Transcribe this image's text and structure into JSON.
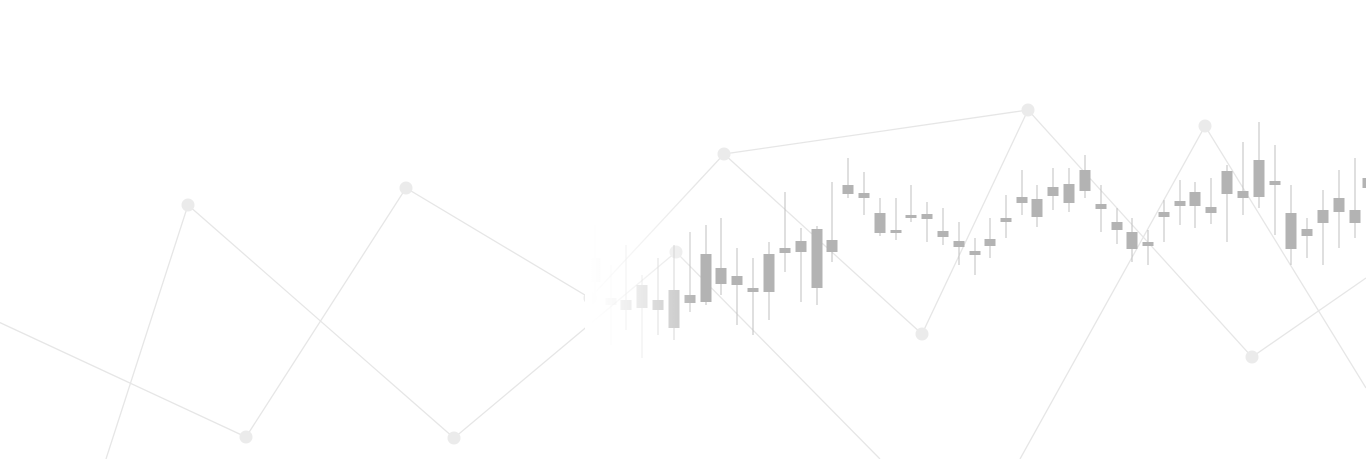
{
  "colors": {
    "background": "#ffffff",
    "network_line": "#e6e6e6",
    "network_node": "#ebebeb",
    "candle": "#b3b3b3",
    "wick": "#bfbfbf"
  },
  "decoration": {
    "description_icon": "stock-chart-network-background"
  }
}
